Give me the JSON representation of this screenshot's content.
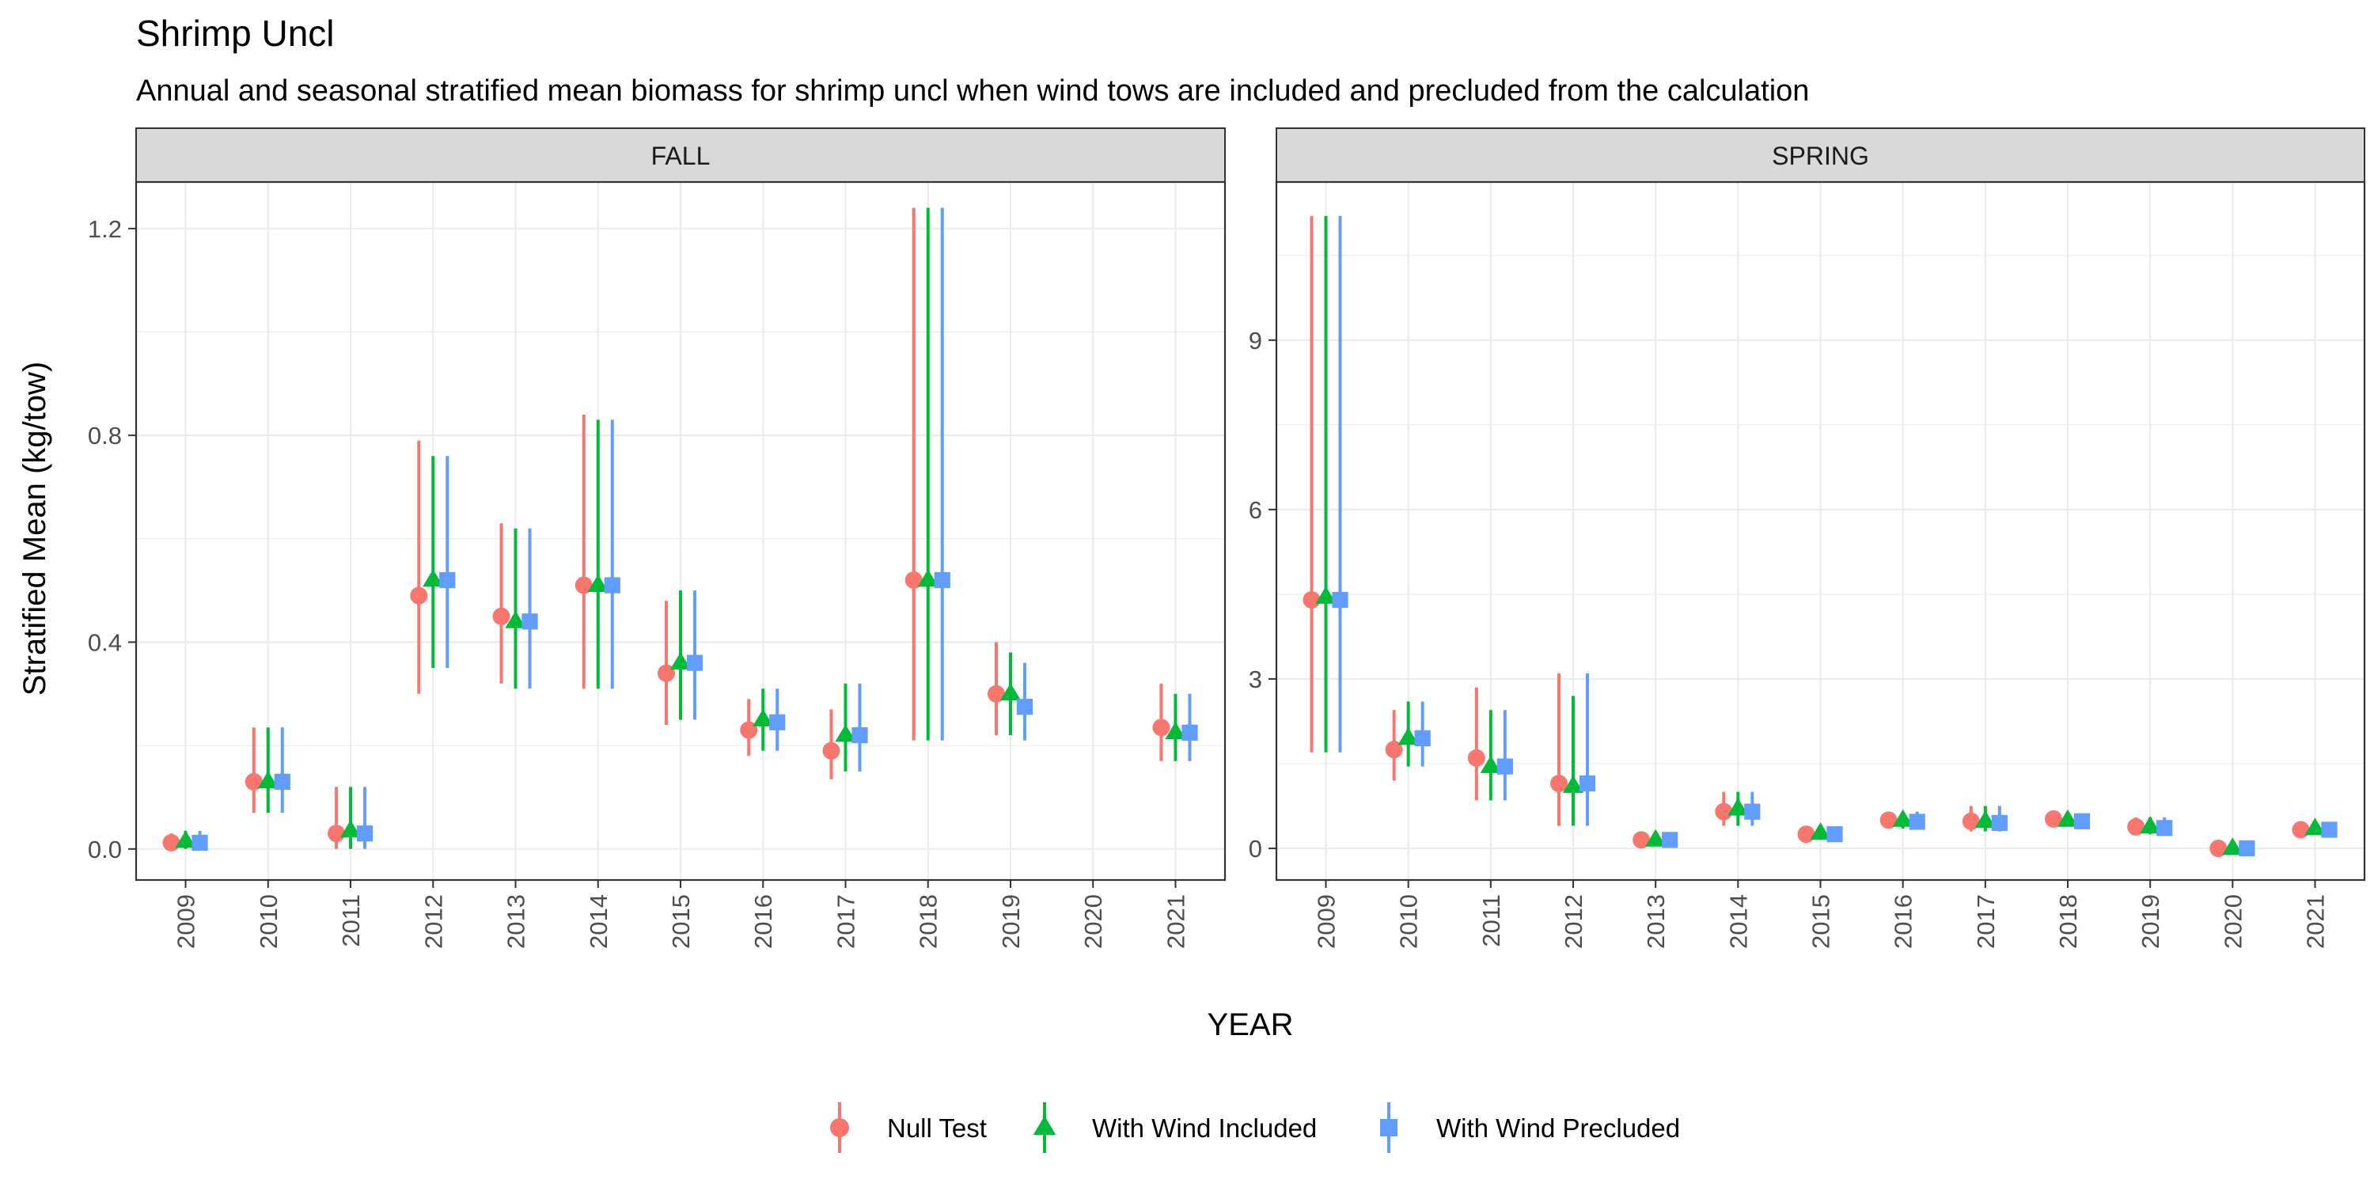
{
  "title": "Shrimp Uncl",
  "subtitle": "Annual and seasonal stratified mean biomass for shrimp uncl when wind tows are included and precluded from the calculation",
  "xlabel": "YEAR",
  "ylabel": "Stratified Mean (kg/tow)",
  "colors": {
    "Null Test": "#F8766D",
    "With Wind Included": "#00BA38",
    "With Wind Precluded": "#619CFF"
  },
  "legend": {
    "position": "bottom",
    "items": [
      {
        "label": "Null Test",
        "shape": "circle"
      },
      {
        "label": "With Wind Included",
        "shape": "triangle"
      },
      {
        "label": "With Wind Precluded",
        "shape": "square"
      }
    ]
  },
  "chart_data": [
    {
      "type": "scatter",
      "panel": "FALL",
      "x": [
        "2009",
        "2010",
        "2011",
        "2012",
        "2013",
        "2014",
        "2015",
        "2016",
        "2017",
        "2018",
        "2019",
        "2020",
        "2021"
      ],
      "ylim": [
        -0.06,
        1.29
      ],
      "yticks": [
        0.0,
        0.4,
        0.8,
        1.2
      ],
      "ytick_labels": [
        "0.0",
        "0.4",
        "0.8",
        "1.2"
      ],
      "grid": true,
      "series": [
        {
          "name": "Null Test",
          "y": [
            0.012,
            0.13,
            0.03,
            0.49,
            0.45,
            0.51,
            0.34,
            0.23,
            0.19,
            0.52,
            0.3,
            null,
            0.235
          ],
          "low": [
            0.0,
            0.07,
            0.0,
            0.3,
            0.32,
            0.31,
            0.24,
            0.18,
            0.135,
            0.21,
            0.22,
            null,
            0.17
          ],
          "high": [
            0.03,
            0.235,
            0.12,
            0.79,
            0.63,
            0.84,
            0.48,
            0.29,
            0.27,
            1.24,
            0.4,
            null,
            0.32
          ]
        },
        {
          "name": "With Wind Included",
          "y": [
            0.015,
            0.13,
            0.035,
            0.52,
            0.44,
            0.51,
            0.36,
            0.25,
            0.22,
            0.52,
            0.3,
            null,
            0.225
          ],
          "low": [
            0.0,
            0.07,
            0.0,
            0.35,
            0.31,
            0.31,
            0.25,
            0.19,
            0.15,
            0.21,
            0.22,
            null,
            0.17
          ],
          "high": [
            0.035,
            0.235,
            0.12,
            0.76,
            0.62,
            0.83,
            0.5,
            0.31,
            0.32,
            1.24,
            0.38,
            null,
            0.3
          ]
        },
        {
          "name": "With Wind Precluded",
          "y": [
            0.012,
            0.13,
            0.03,
            0.52,
            0.44,
            0.51,
            0.36,
            0.245,
            0.22,
            0.52,
            0.275,
            null,
            0.225
          ],
          "low": [
            0.0,
            0.07,
            0.0,
            0.35,
            0.31,
            0.31,
            0.25,
            0.19,
            0.15,
            0.21,
            0.21,
            null,
            0.17
          ],
          "high": [
            0.035,
            0.235,
            0.12,
            0.76,
            0.62,
            0.83,
            0.5,
            0.31,
            0.32,
            1.24,
            0.36,
            null,
            0.3
          ]
        }
      ]
    },
    {
      "type": "scatter",
      "panel": "SPRING",
      "x": [
        "2009",
        "2010",
        "2011",
        "2012",
        "2013",
        "2014",
        "2015",
        "2016",
        "2017",
        "2018",
        "2019",
        "2020",
        "2021"
      ],
      "ylim": [
        -0.56,
        11.8
      ],
      "yticks": [
        0,
        3,
        6,
        9
      ],
      "ytick_labels": [
        "0",
        "3",
        "6",
        "9"
      ],
      "grid": true,
      "series": [
        {
          "name": "Null Test",
          "y": [
            4.4,
            1.75,
            1.6,
            1.15,
            0.15,
            0.65,
            0.25,
            0.5,
            0.48,
            0.52,
            0.38,
            0.0,
            0.33
          ],
          "low": [
            1.7,
            1.2,
            0.85,
            0.4,
            0.05,
            0.4,
            0.15,
            0.35,
            0.3,
            0.4,
            0.25,
            0.0,
            0.25
          ],
          "high": [
            11.2,
            2.45,
            2.85,
            3.1,
            0.25,
            1.0,
            0.35,
            0.65,
            0.75,
            0.62,
            0.55,
            0.02,
            0.42
          ]
        },
        {
          "name": "With Wind Included",
          "y": [
            4.45,
            1.95,
            1.45,
            1.1,
            0.15,
            0.7,
            0.27,
            0.5,
            0.48,
            0.5,
            0.38,
            0.0,
            0.35
          ],
          "low": [
            1.7,
            1.45,
            0.85,
            0.4,
            0.05,
            0.4,
            0.15,
            0.35,
            0.3,
            0.4,
            0.25,
            0.0,
            0.25
          ],
          "high": [
            11.2,
            2.6,
            2.45,
            2.7,
            0.25,
            1.0,
            0.35,
            0.65,
            0.75,
            0.62,
            0.55,
            0.02,
            0.42
          ]
        },
        {
          "name": "With Wind Precluded",
          "y": [
            4.4,
            1.95,
            1.45,
            1.15,
            0.15,
            0.65,
            0.25,
            0.47,
            0.45,
            0.48,
            0.36,
            0.0,
            0.33
          ],
          "low": [
            1.7,
            1.45,
            0.85,
            0.4,
            0.05,
            0.4,
            0.15,
            0.35,
            0.3,
            0.4,
            0.25,
            0.0,
            0.25
          ],
          "high": [
            11.2,
            2.6,
            2.45,
            3.1,
            0.25,
            1.0,
            0.35,
            0.65,
            0.75,
            0.62,
            0.55,
            0.02,
            0.42
          ]
        }
      ]
    }
  ]
}
